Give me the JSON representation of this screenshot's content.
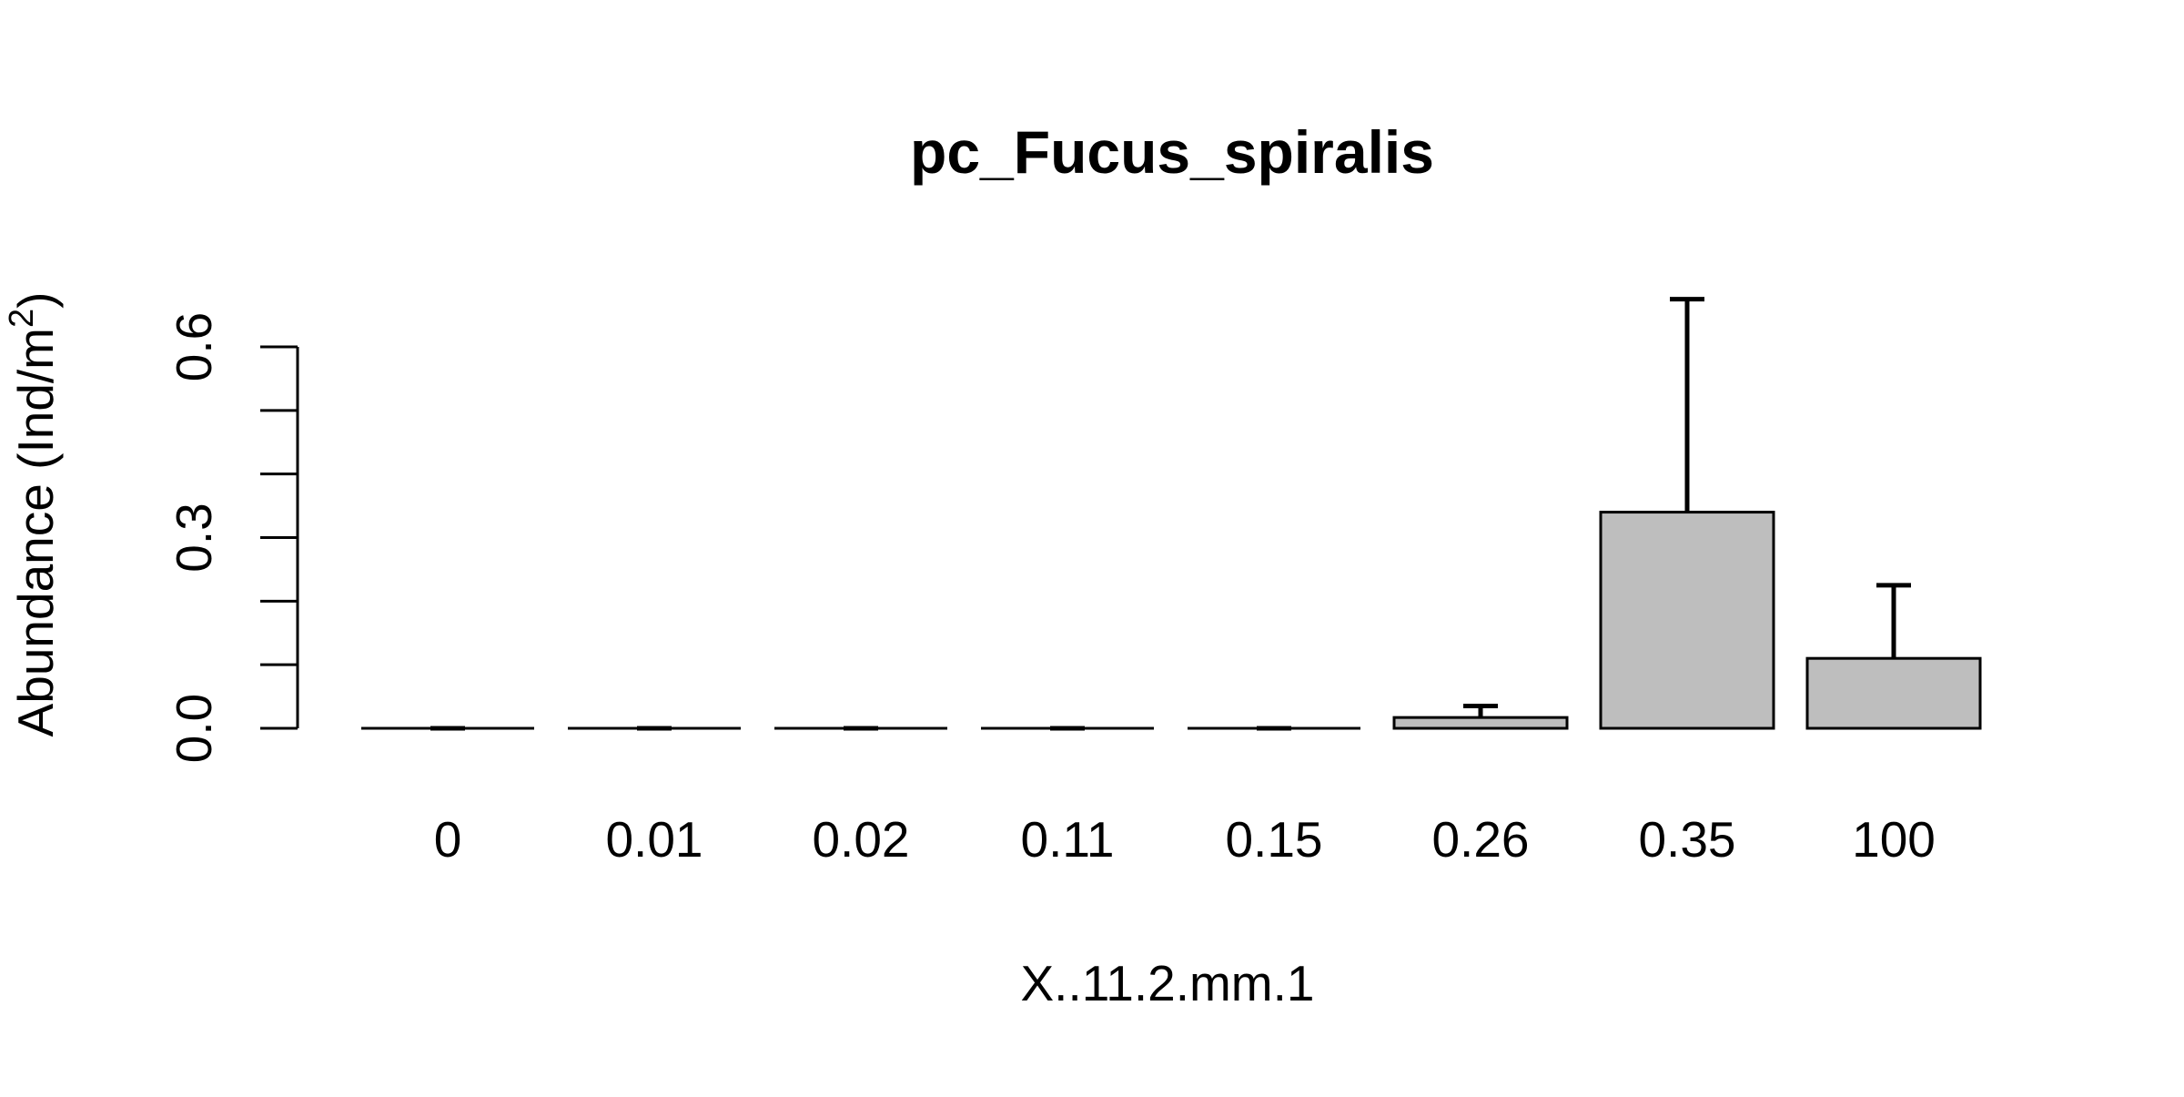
{
  "chart_data": {
    "type": "bar",
    "title": "pc_Fucus_spiralis",
    "xlabel": "X..11.2.mm.1",
    "ylabel": "Abundance (Ind/m",
    "ylabel_superscript": "2",
    "ylabel_suffix": ")",
    "categories": [
      "0",
      "0.01",
      "0.02",
      "0.11",
      "0.15",
      "0.26",
      "0.35",
      "100"
    ],
    "values": [
      0,
      0,
      0,
      0,
      0,
      0.017,
      0.34,
      0.11
    ],
    "error_upper": [
      0,
      0,
      0,
      0,
      0,
      0.035,
      0.675,
      0.225
    ],
    "ylim": [
      0,
      0.6
    ],
    "y_ticks": [
      0,
      0.1,
      0.2,
      0.3,
      0.4,
      0.5,
      0.6
    ],
    "y_tick_labels": [
      "0.0",
      "",
      "",
      "0.3",
      "",
      "",
      "0.6"
    ],
    "grid": false,
    "colors": {
      "bar_fill": "#bebebe",
      "bar_stroke": "#000000",
      "error_bar": "#000000"
    }
  }
}
